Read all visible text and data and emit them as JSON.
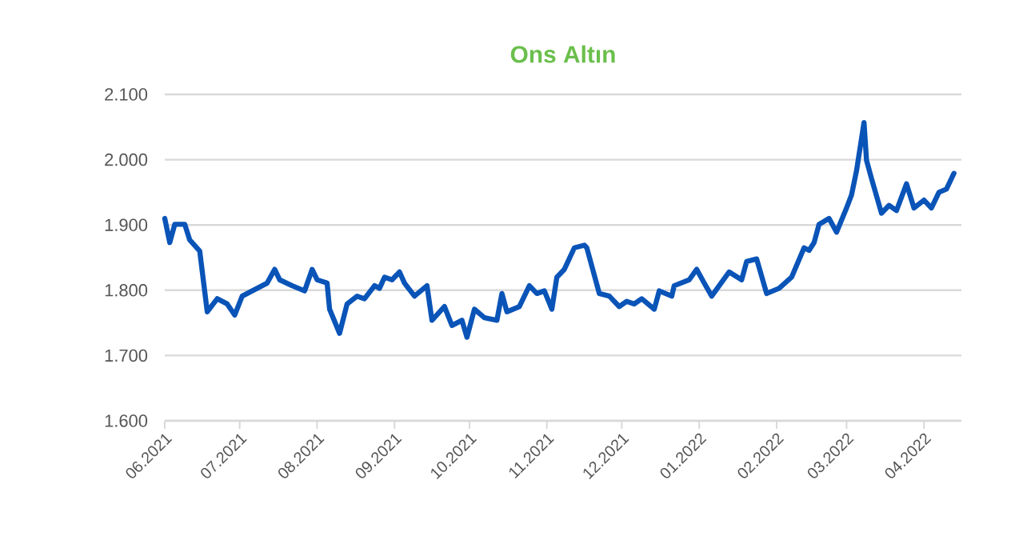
{
  "chart_data": {
    "type": "line",
    "title": "Ons Altın",
    "x": [
      "2021-06-01",
      "2021-06-03",
      "2021-06-05",
      "2021-06-09",
      "2021-06-11",
      "2021-06-15",
      "2021-06-18",
      "2021-06-22",
      "2021-06-26",
      "2021-06-29",
      "2021-07-02",
      "2021-07-08",
      "2021-07-12",
      "2021-07-15",
      "2021-07-17",
      "2021-07-22",
      "2021-07-27",
      "2021-07-30",
      "2021-08-01",
      "2021-08-05",
      "2021-08-06",
      "2021-08-10",
      "2021-08-13",
      "2021-08-17",
      "2021-08-20",
      "2021-08-24",
      "2021-08-26",
      "2021-08-28",
      "2021-08-31",
      "2021-09-03",
      "2021-09-05",
      "2021-09-09",
      "2021-09-14",
      "2021-09-16",
      "2021-09-21",
      "2021-09-24",
      "2021-09-28",
      "2021-09-30",
      "2021-10-03",
      "2021-10-07",
      "2021-10-12",
      "2021-10-14",
      "2021-10-16",
      "2021-10-21",
      "2021-10-25",
      "2021-10-28",
      "2021-10-31",
      "2021-11-03",
      "2021-11-05",
      "2021-11-08",
      "2021-11-12",
      "2021-11-16",
      "2021-11-17",
      "2021-11-22",
      "2021-11-26",
      "2021-11-30",
      "2021-12-03",
      "2021-12-06",
      "2021-12-09",
      "2021-12-14",
      "2021-12-16",
      "2021-12-21",
      "2021-12-22",
      "2021-12-28",
      "2021-12-31",
      "2022-01-03",
      "2022-01-06",
      "2022-01-09",
      "2022-01-13",
      "2022-01-18",
      "2022-01-20",
      "2022-01-24",
      "2022-01-28",
      "2022-02-02",
      "2022-02-07",
      "2022-02-12",
      "2022-02-14",
      "2022-02-16",
      "2022-02-18",
      "2022-02-22",
      "2022-02-25",
      "2022-03-01",
      "2022-03-03",
      "2022-03-05",
      "2022-03-08",
      "2022-03-09",
      "2022-03-11",
      "2022-03-15",
      "2022-03-18",
      "2022-03-21",
      "2022-03-25",
      "2022-03-28",
      "2022-04-01",
      "2022-04-04",
      "2022-04-07",
      "2022-04-10",
      "2022-04-13"
    ],
    "series": [
      {
        "color": "#0a54b8",
        "values": [
          1910,
          1873,
          1901,
          1901,
          1877,
          1860,
          1767,
          1787,
          1779,
          1762,
          1791,
          1803,
          1811,
          1832,
          1816,
          1807,
          1799,
          1832,
          1816,
          1811,
          1771,
          1734,
          1779,
          1791,
          1787,
          1807,
          1803,
          1820,
          1816,
          1828,
          1811,
          1791,
          1807,
          1754,
          1775,
          1746,
          1754,
          1728,
          1771,
          1758,
          1754,
          1795,
          1767,
          1775,
          1807,
          1795,
          1799,
          1771,
          1820,
          1832,
          1865,
          1869,
          1865,
          1795,
          1791,
          1775,
          1783,
          1779,
          1787,
          1771,
          1799,
          1791,
          1807,
          1816,
          1832,
          1811,
          1791,
          1807,
          1828,
          1816,
          1844,
          1848,
          1795,
          1803,
          1820,
          1865,
          1861,
          1873,
          1901,
          1910,
          1889,
          1926,
          1946,
          1983,
          2057,
          1999,
          1971,
          1918,
          1930,
          1922,
          1963,
          1926,
          1938,
          1926,
          1950,
          1955,
          1979
        ]
      }
    ],
    "xlim": [
      "2021-06-01",
      "2022-04-16"
    ],
    "xticks": [
      {
        "value": "2021-06-01",
        "label": "06.2021"
      },
      {
        "value": "2021-07-01",
        "label": "07.2021"
      },
      {
        "value": "2021-08-01",
        "label": "08.2021"
      },
      {
        "value": "2021-09-01",
        "label": "09.2021"
      },
      {
        "value": "2021-10-01",
        "label": "10.2021"
      },
      {
        "value": "2021-11-01",
        "label": "11.2021"
      },
      {
        "value": "2021-12-01",
        "label": "12.2021"
      },
      {
        "value": "2022-01-01",
        "label": "01.2022"
      },
      {
        "value": "2022-02-01",
        "label": "02.2022"
      },
      {
        "value": "2022-03-01",
        "label": "03.2022"
      },
      {
        "value": "2022-04-01",
        "label": "04.2022"
      }
    ],
    "ylim": [
      1600,
      2100
    ],
    "yticks": [
      {
        "value": 1600,
        "label": "1.600"
      },
      {
        "value": 1700,
        "label": "1.700"
      },
      {
        "value": 1800,
        "label": "1.800"
      },
      {
        "value": 1900,
        "label": "1.900"
      },
      {
        "value": 2000,
        "label": "2.000"
      },
      {
        "value": 2100,
        "label": "2.100"
      }
    ],
    "grid": "y",
    "marker": "none",
    "line_style": "solid"
  }
}
